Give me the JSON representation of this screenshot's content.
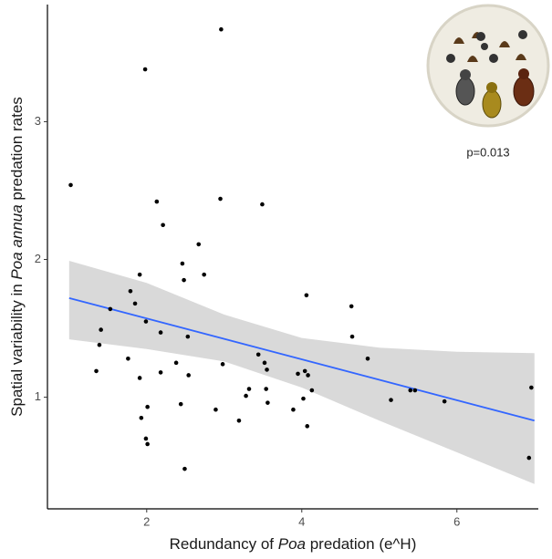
{
  "chart_data": {
    "type": "scatter",
    "xlabel": [
      {
        "text": "Redundancy of ",
        "italic": false
      },
      {
        "text": "Poa",
        "italic": true
      },
      {
        "text": " predation (e^H)",
        "italic": false
      }
    ],
    "ylabel": [
      {
        "text": "Spatial variability in ",
        "italic": false
      },
      {
        "text": "Poa annua",
        "italic": true
      },
      {
        "text": " predation rates",
        "italic": false
      }
    ],
    "annotation": "p=0.013",
    "xlim": [
      0.72,
      7.05
    ],
    "ylim": [
      0.19,
      3.85
    ],
    "xticks": [
      2,
      4,
      6
    ],
    "yticks": [
      1,
      2,
      3
    ],
    "grid": false,
    "point_color": "#000000",
    "x": [
      1.02,
      1.98,
      2.96,
      2.13,
      2.95,
      3.49,
      2.21,
      2.67,
      2.46,
      2.74,
      1.91,
      2.48,
      1.79,
      4.06,
      1.85,
      1.53,
      4.64,
      1.41,
      1.99,
      4.65,
      2.18,
      2.53,
      1.39,
      1.76,
      4.85,
      2.38,
      3.44,
      3.52,
      2.98,
      3.55,
      1.35,
      2.18,
      3.95,
      4.04,
      4.08,
      2.54,
      1.91,
      3.32,
      3.54,
      4.13,
      3.28,
      4.02,
      5.46,
      5.4,
      5.15,
      5.84,
      6.96,
      2.01,
      3.56,
      2.44,
      3.89,
      2.89,
      1.93,
      3.19,
      4.07,
      1.99,
      2.01,
      6.93,
      2.49
    ],
    "y": [
      2.54,
      3.38,
      3.67,
      2.42,
      2.44,
      2.4,
      2.25,
      2.11,
      1.97,
      1.89,
      1.89,
      1.85,
      1.77,
      1.74,
      1.68,
      1.64,
      1.66,
      1.49,
      1.55,
      1.44,
      1.47,
      1.44,
      1.38,
      1.28,
      1.28,
      1.25,
      1.31,
      1.25,
      1.24,
      1.2,
      1.19,
      1.18,
      1.17,
      1.19,
      1.16,
      1.16,
      1.14,
      1.06,
      1.06,
      1.05,
      1.01,
      0.99,
      1.05,
      1.05,
      0.98,
      0.97,
      1.07,
      0.93,
      0.96,
      0.95,
      0.91,
      0.91,
      0.85,
      0.83,
      0.79,
      0.7,
      0.66,
      0.56,
      0.48
    ],
    "fit": {
      "x": [
        1,
        7
      ],
      "y": [
        1.72,
        0.83
      ],
      "color": "#3366ff",
      "band_color": "#d9d9d9",
      "band_x": [
        1,
        2,
        3,
        4,
        5,
        6,
        7
      ],
      "band_upper": [
        1.99,
        1.83,
        1.6,
        1.43,
        1.36,
        1.33,
        1.32
      ],
      "band_lower": [
        1.42,
        1.35,
        1.26,
        1.07,
        0.83,
        0.6,
        0.37
      ]
    }
  }
}
